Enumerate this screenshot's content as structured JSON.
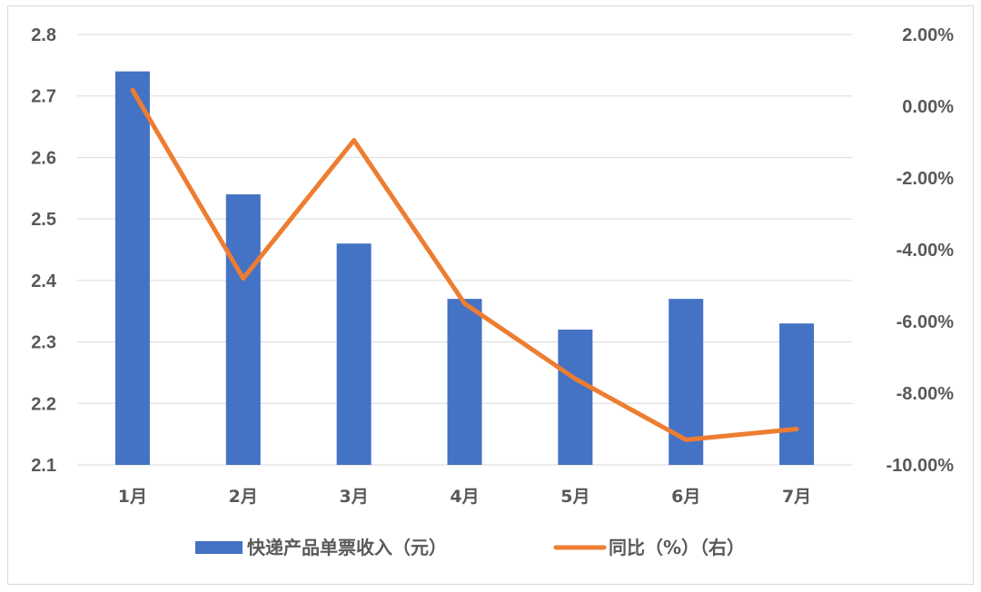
{
  "chart_data": {
    "type": "bar+line",
    "categories": [
      "1月",
      "2月",
      "3月",
      "4月",
      "5月",
      "6月",
      "7月"
    ],
    "series": [
      {
        "name": "快递产品单票收入（元）",
        "type": "bar",
        "axis": "left",
        "values": [
          2.74,
          2.54,
          2.46,
          2.37,
          2.32,
          2.37,
          2.33
        ]
      },
      {
        "name": "同比（%）（右）",
        "type": "line",
        "axis": "right",
        "values": [
          0.45,
          -4.8,
          -0.95,
          -5.5,
          -7.6,
          -9.3,
          -9.0
        ]
      }
    ],
    "y_left": {
      "min": 2.1,
      "max": 2.8,
      "step": 0.1,
      "tick_labels": [
        "2.1",
        "2.2",
        "2.3",
        "2.4",
        "2.5",
        "2.6",
        "2.7",
        "2.8"
      ]
    },
    "y_right": {
      "min": -10,
      "max": 2,
      "step": 2,
      "tick_labels": [
        "-10.00%",
        "-8.00%",
        "-6.00%",
        "-4.00%",
        "-2.00%",
        "0.00%",
        "2.00%"
      ]
    },
    "grid": true,
    "legend_position": "bottom",
    "colors": {
      "bar": "#4472C4",
      "line": "#ED7D31",
      "grid": "#d9d9d9",
      "text": "#595959"
    }
  }
}
